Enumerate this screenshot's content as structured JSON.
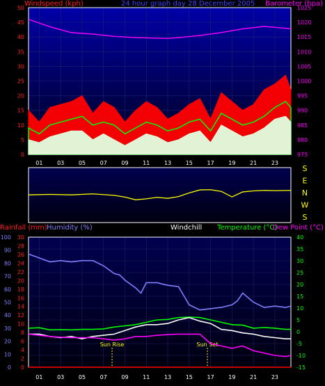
{
  "chart_data": [
    {
      "type": "line",
      "panel": "wind-pressure",
      "title": "24 hour graph day 28 December 2005",
      "ylabel_left": "Windspeed (kph)",
      "ylabel_right": "Barometer (hpa)",
      "x_ticks": [
        "01",
        "03",
        "05",
        "07",
        "09",
        "11",
        "13",
        "15",
        "17",
        "19",
        "21",
        "23"
      ],
      "xlim": [
        0,
        24.5
      ],
      "ylim_left": [
        0,
        50
      ],
      "y_ticks_left": [
        0,
        5,
        10,
        15,
        20,
        25,
        30,
        35,
        40,
        45,
        50
      ],
      "ylim_right": [
        975,
        1025
      ],
      "y_ticks_right": [
        975,
        980,
        985,
        990,
        995,
        1000,
        1005,
        1010,
        1015,
        1020,
        1025
      ],
      "series": [
        {
          "name": "Barometer",
          "axis": "right",
          "color": "#ff00ff",
          "x": [
            0,
            2,
            4,
            6,
            8,
            10,
            12,
            13,
            14,
            16,
            18,
            20,
            22,
            23,
            24.5
          ],
          "y": [
            1021,
            1018.5,
            1016.5,
            1016,
            1015.2,
            1014.8,
            1014.6,
            1014.5,
            1014.8,
            1015.5,
            1016.5,
            1017.8,
            1018.6,
            1018.3,
            1017.8
          ]
        },
        {
          "name": "Gust",
          "axis": "left",
          "color": "#ff0000",
          "x": [
            0,
            1,
            2,
            3,
            4,
            5,
            6,
            7,
            8,
            9,
            10,
            11,
            12,
            13,
            14,
            15,
            16,
            17,
            18,
            19,
            20,
            21,
            22,
            23,
            24,
            24.5
          ],
          "y": [
            15,
            11,
            16,
            17,
            18,
            20,
            14,
            18,
            16,
            11,
            15,
            18,
            16,
            12,
            14,
            17,
            19,
            12,
            21,
            18,
            15,
            17,
            22,
            24,
            27,
            22
          ]
        },
        {
          "name": "Average",
          "axis": "left",
          "color": "#00ff00",
          "x": [
            0,
            1,
            2,
            3,
            4,
            5,
            6,
            7,
            8,
            9,
            10,
            11,
            12,
            13,
            14,
            15,
            16,
            17,
            18,
            19,
            20,
            21,
            22,
            23,
            24,
            24.5
          ],
          "y": [
            9,
            7,
            10,
            11,
            12,
            13,
            10,
            11,
            10,
            7,
            9,
            11,
            10,
            8,
            9,
            11,
            12,
            8,
            14,
            12,
            10,
            11,
            13,
            16,
            18,
            16
          ]
        },
        {
          "name": "Windspeed",
          "axis": "left",
          "color": "#e0ffe0",
          "x": [
            0,
            1,
            2,
            3,
            4,
            5,
            6,
            7,
            8,
            9,
            10,
            11,
            12,
            13,
            14,
            15,
            16,
            17,
            18,
            19,
            20,
            21,
            22,
            23,
            24,
            24.5
          ],
          "y": [
            5,
            4,
            6,
            7,
            8,
            8,
            5,
            7,
            5,
            3,
            5,
            7,
            6,
            4,
            5,
            7,
            8,
            4,
            10,
            8,
            6,
            7,
            9,
            12,
            13,
            11
          ]
        }
      ]
    },
    {
      "type": "line",
      "panel": "wind-direction",
      "y_ticks": [
        "S",
        "E",
        "N",
        "W",
        "S"
      ],
      "series": [
        {
          "name": "Direction",
          "color": "#ffff00",
          "x": [
            0,
            2,
            4,
            6,
            8,
            9,
            10,
            11,
            12,
            13,
            14,
            15,
            16,
            17,
            18,
            19,
            20,
            21,
            22,
            23,
            24.5
          ],
          "y": [
            0.12,
            0.14,
            0.12,
            0.16,
            0.1,
            0.03,
            -0.08,
            -0.04,
            0.02,
            -0.02,
            0.05,
            0.2,
            0.32,
            0.33,
            0.26,
            0.04,
            0.24,
            0.28,
            0.3,
            0.29,
            0.3
          ]
        }
      ]
    },
    {
      "type": "line",
      "panel": "rain-humidity-temp",
      "legend": {
        "rainfall": "Rainfall (mm)",
        "humidity": "Humidity (%)",
        "windchill": "Windchill",
        "temperature": "Temperature (°C)",
        "dewpoint": "Dew Point (°C)"
      },
      "x_ticks": [
        "01",
        "03",
        "05",
        "07",
        "09",
        "11",
        "13",
        "15",
        "17",
        "19",
        "21",
        "23"
      ],
      "xlim": [
        0,
        24.5
      ],
      "y_ticks_humidity": [
        0,
        10,
        20,
        30,
        40,
        50,
        60,
        70,
        80,
        90,
        100
      ],
      "y_ticks_rain": [
        0,
        2,
        4,
        6,
        8,
        10,
        12,
        14,
        16,
        18,
        20,
        22,
        24,
        26,
        28,
        30
      ],
      "ylim_temp": [
        -15,
        40
      ],
      "y_ticks_temp": [
        -15,
        -10,
        -5,
        0,
        5,
        10,
        15,
        20,
        25,
        30,
        35,
        40
      ],
      "annotations": [
        {
          "label": "Sun Rise",
          "x": 7.8
        },
        {
          "label": "Sun Set",
          "x": 16.7
        }
      ],
      "series": [
        {
          "name": "Humidity",
          "axis": "humidity",
          "color": "#8080ff",
          "x": [
            0,
            1,
            2,
            3,
            4,
            5,
            6,
            7,
            8,
            8.5,
            9,
            10,
            10.5,
            11,
            12,
            13,
            14,
            15,
            16,
            17,
            18,
            19,
            19.5,
            20,
            21,
            22,
            23,
            24,
            24.5
          ],
          "y": [
            87,
            84,
            81,
            82,
            81,
            82,
            82,
            78,
            72,
            71,
            67,
            61,
            57,
            65,
            65,
            63,
            62,
            48,
            44,
            45,
            46,
            48,
            51,
            57,
            50,
            46,
            47,
            46,
            47
          ]
        },
        {
          "name": "Temperature",
          "axis": "temp",
          "color": "#00ff00",
          "x": [
            0,
            1,
            2,
            3,
            4,
            5,
            6,
            7,
            8,
            9,
            10,
            11,
            12,
            13,
            14,
            15,
            16,
            17,
            18,
            19,
            20,
            21,
            22,
            23,
            24,
            24.5
          ],
          "y": [
            1.5,
            1.7,
            0.8,
            0.9,
            0.8,
            1.0,
            1.0,
            1.2,
            2.0,
            2.5,
            3.0,
            4.0,
            5.0,
            5.2,
            6.0,
            6.2,
            6.0,
            5.0,
            4.0,
            3.0,
            2.8,
            1.5,
            1.8,
            1.5,
            1.0,
            1.0
          ]
        },
        {
          "name": "Windchill",
          "axis": "temp",
          "color": "#ffffff",
          "x": [
            0,
            1,
            2,
            3,
            4,
            5,
            6,
            7,
            8,
            9,
            10,
            11,
            12,
            13,
            14,
            15,
            16,
            17,
            18,
            19,
            20,
            21,
            22,
            23,
            24,
            24.5
          ],
          "y": [
            -1.0,
            -1.0,
            -2.0,
            -2.5,
            -2.0,
            -3.0,
            -2.0,
            -1.5,
            -1.0,
            0.5,
            2.0,
            3.0,
            3.0,
            3.5,
            5.0,
            6.0,
            4.5,
            3.5,
            1.0,
            0.5,
            -0.5,
            -1.0,
            -2.0,
            -2.5,
            -3.0,
            -3.0
          ]
        },
        {
          "name": "Dew Point",
          "axis": "temp",
          "color": "#ff00ff",
          "x": [
            0,
            1,
            2,
            3,
            4,
            5,
            6,
            7,
            8,
            9,
            10,
            11,
            12,
            13,
            14,
            15,
            16,
            17,
            18,
            19,
            20,
            21,
            22,
            23,
            24,
            24.5
          ],
          "y": [
            -1.0,
            -1.5,
            -2.0,
            -2.3,
            -2.5,
            -2.5,
            -2.5,
            -3.0,
            -3.5,
            -3.0,
            -2.0,
            -2.0,
            -1.5,
            -1.2,
            -1.0,
            -1.0,
            -1.0,
            -5.0,
            -6.0,
            -7.0,
            -6.0,
            -8.0,
            -9.0,
            -10.0,
            -10.5,
            -10.0
          ]
        },
        {
          "name": "Rainfall",
          "axis": "rain",
          "color": "#ff0000",
          "x": [
            0,
            24.5
          ],
          "y": [
            0,
            0
          ]
        }
      ]
    }
  ]
}
